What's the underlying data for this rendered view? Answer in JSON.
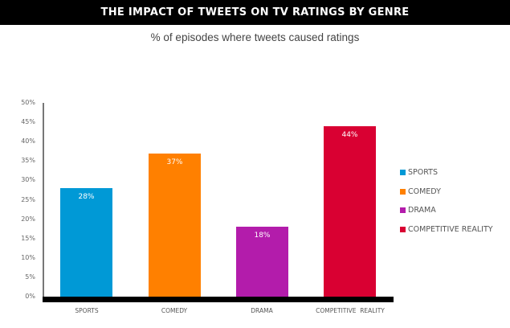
{
  "header": {
    "title": "THE IMPACT OF TWEETS ON TV RATINGS BY GENRE"
  },
  "subtitle": "% of episodes where tweets caused ratings",
  "axis": {
    "y_ticks": [
      "50%",
      "45%",
      "40%",
      "35%",
      "30%",
      "25%",
      "20%",
      "15%",
      "10%",
      "5%",
      "0%"
    ]
  },
  "bars": [
    {
      "category": "SPORTS",
      "value": 28,
      "label": "28%",
      "color": "#0099d6"
    },
    {
      "category": "COMEDY",
      "value": 37,
      "label": "37%",
      "color": "#ff8000"
    },
    {
      "category": "DRAMA",
      "value": 18,
      "label": "18%",
      "color": "#b31cab"
    },
    {
      "category": "COMPETITIVE  REALITY",
      "value": 44,
      "label": "44%",
      "color": "#d90032"
    }
  ],
  "legend": [
    {
      "label": "SPORTS",
      "color": "#0099d6"
    },
    {
      "label": "COMEDY",
      "color": "#ff8000"
    },
    {
      "label": "DRAMA",
      "color": "#b31cab"
    },
    {
      "label": "COMPETITIVE REALITY",
      "color": "#d90032"
    }
  ],
  "chart_data": {
    "type": "bar",
    "title": "THE IMPACT OF TWEETS ON TV RATINGS BY GENRE",
    "subtitle": "% of episodes where tweets caused ratings",
    "categories": [
      "SPORTS",
      "COMEDY",
      "DRAMA",
      "COMPETITIVE REALITY"
    ],
    "values": [
      28,
      37,
      18,
      44
    ],
    "data_labels": [
      "28%",
      "37%",
      "18%",
      "44%"
    ],
    "colors": [
      "#0099d6",
      "#ff8000",
      "#b31cab",
      "#d90032"
    ],
    "xlabel": "",
    "ylabel": "",
    "ylim": [
      0,
      50
    ],
    "y_tick_step": 5,
    "y_tick_format": "percent",
    "grid": false,
    "legend_position": "right",
    "legend": [
      "SPORTS",
      "COMEDY",
      "DRAMA",
      "COMPETITIVE REALITY"
    ]
  }
}
